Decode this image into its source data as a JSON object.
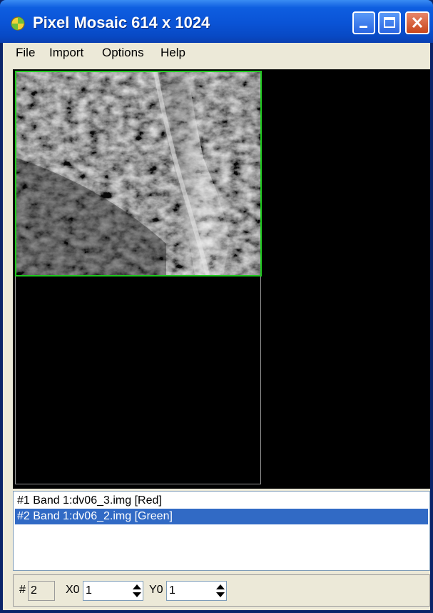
{
  "window": {
    "title": "Pixel Mosaic 614 x 1024",
    "controls": {
      "minimize": "minimize-icon",
      "maximize": "maximize-icon",
      "close": "close-icon"
    }
  },
  "menu": [
    "File",
    "Import",
    "Options",
    "Help"
  ],
  "layers": [
    {
      "label": "#1 Band 1:dv06_3.img [Red]",
      "selected": false
    },
    {
      "label": "#2 Band 1:dv06_2.img [Green]",
      "selected": true
    }
  ],
  "position": {
    "index_label": "#",
    "index_value": "2",
    "x0_label": "X0",
    "x0_value": "1",
    "y0_label": "Y0",
    "y0_value": "1"
  },
  "colors": {
    "title_bar": "#0a53d6",
    "selection": "#316ac5",
    "tile_border": "#1fc91f",
    "canvas": "#000000"
  }
}
